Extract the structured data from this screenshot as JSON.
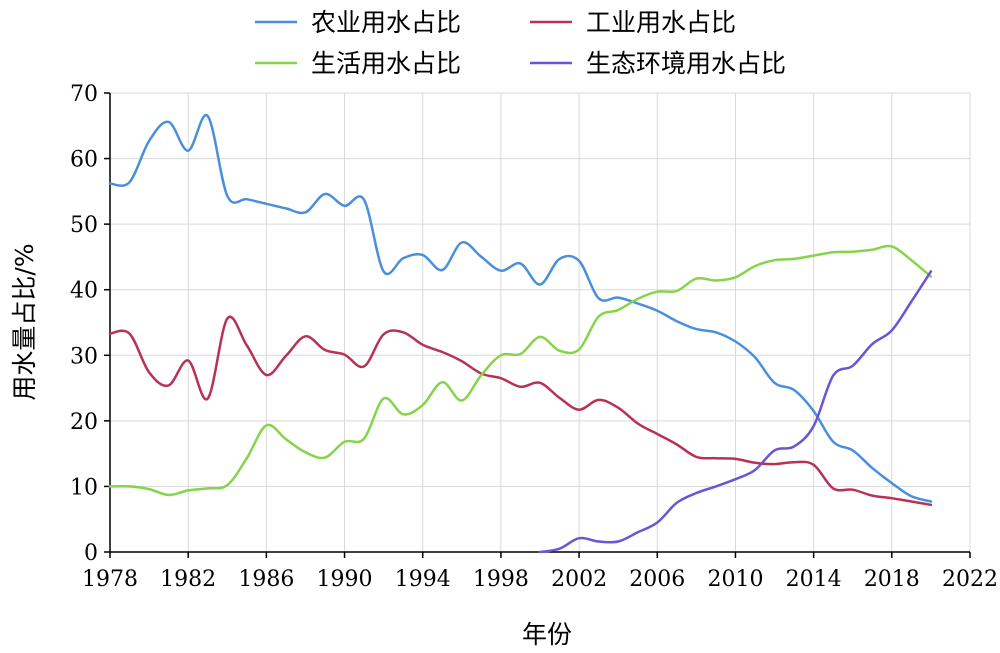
{
  "chart_data": {
    "type": "line",
    "xlabel": "年份",
    "ylabel": "用水量占比/%",
    "xlim": [
      1978,
      2022
    ],
    "ylim": [
      0,
      70
    ],
    "xticks": [
      1978,
      1982,
      1986,
      1990,
      1994,
      1998,
      2002,
      2006,
      2010,
      2014,
      2018,
      2022
    ],
    "yticks": [
      0,
      10,
      20,
      30,
      40,
      50,
      60,
      70
    ],
    "grid": true,
    "legend_position": "top-center",
    "series": [
      {
        "name": "农业用水占比",
        "color": "#4a8fdc",
        "x": [
          1978,
          1979,
          1980,
          1981,
          1982,
          1983,
          1984,
          1985,
          1986,
          1987,
          1988,
          1989,
          1990,
          1991,
          1992,
          1993,
          1994,
          1995,
          1996,
          1997,
          1998,
          1999,
          2000,
          2001,
          2002,
          2003,
          2004,
          2005,
          2006,
          2007,
          2008,
          2009,
          2010,
          2011,
          2012,
          2013,
          2014,
          2015,
          2016,
          2017,
          2018,
          2019,
          2020
        ],
        "y": [
          56.2,
          56.4,
          62.7,
          65.6,
          61.2,
          66.5,
          54.3,
          53.8,
          53.1,
          52.4,
          51.8,
          54.6,
          52.8,
          53.7,
          42.8,
          44.8,
          45.3,
          43.0,
          47.2,
          45.0,
          42.9,
          44.0,
          40.8,
          44.7,
          44.4,
          38.7,
          38.8,
          37.9,
          36.8,
          35.2,
          34.0,
          33.5,
          32.1,
          29.7,
          25.8,
          24.7,
          21.5,
          16.8,
          15.5,
          12.8,
          10.5,
          8.5,
          7.7
        ]
      },
      {
        "name": "工业用水占比",
        "color": "#b83256",
        "x": [
          1978,
          1979,
          1980,
          1981,
          1982,
          1983,
          1984,
          1985,
          1986,
          1987,
          1988,
          1989,
          1990,
          1991,
          1992,
          1993,
          1994,
          1995,
          1996,
          1997,
          1998,
          1999,
          2000,
          2001,
          2002,
          2003,
          2004,
          2005,
          2006,
          2007,
          2008,
          2009,
          2010,
          2011,
          2012,
          2013,
          2014,
          2015,
          2016,
          2017,
          2018,
          2019,
          2020
        ],
        "y": [
          33.3,
          33.3,
          27.4,
          25.4,
          29.2,
          23.4,
          35.6,
          31.5,
          27.0,
          29.9,
          32.9,
          30.8,
          30.1,
          28.3,
          33.2,
          33.5,
          31.6,
          30.5,
          29.1,
          27.2,
          26.5,
          25.2,
          25.8,
          23.5,
          21.7,
          23.2,
          22.0,
          19.6,
          18.0,
          16.4,
          14.5,
          14.3,
          14.2,
          13.6,
          13.4,
          13.7,
          13.3,
          9.7,
          9.5,
          8.6,
          8.2,
          7.7,
          7.2
        ]
      },
      {
        "name": "生活用水占比",
        "color": "#86d44a",
        "x": [
          1978,
          1979,
          1980,
          1981,
          1982,
          1983,
          1984,
          1985,
          1986,
          1987,
          1988,
          1989,
          1990,
          1991,
          1992,
          1993,
          1994,
          1995,
          1996,
          1997,
          1998,
          1999,
          2000,
          2001,
          2002,
          2003,
          2004,
          2005,
          2006,
          2007,
          2008,
          2009,
          2010,
          2011,
          2012,
          2013,
          2014,
          2015,
          2016,
          2017,
          2018,
          2019,
          2020
        ],
        "y": [
          10.0,
          10.0,
          9.6,
          8.7,
          9.4,
          9.7,
          10.2,
          14.3,
          19.3,
          17.2,
          15.2,
          14.4,
          16.8,
          17.3,
          23.4,
          21.0,
          22.4,
          25.9,
          23.1,
          27.0,
          30.0,
          30.2,
          32.8,
          30.7,
          30.9,
          35.9,
          36.9,
          38.6,
          39.7,
          39.8,
          41.7,
          41.4,
          41.9,
          43.6,
          44.5,
          44.7,
          45.2,
          45.7,
          45.8,
          46.1,
          46.6,
          44.5,
          42.0
        ]
      },
      {
        "name": "生态环境用水占比",
        "color": "#6c55d4",
        "x": [
          2000,
          2001,
          2002,
          2003,
          2004,
          2005,
          2006,
          2007,
          2008,
          2009,
          2010,
          2011,
          2012,
          2013,
          2014,
          2015,
          2016,
          2017,
          2018,
          2019,
          2020
        ],
        "y": [
          0.0,
          0.5,
          2.1,
          1.6,
          1.6,
          3.0,
          4.5,
          7.5,
          9.0,
          10.0,
          11.1,
          12.5,
          15.5,
          16.1,
          19.2,
          26.9,
          28.4,
          31.7,
          33.8,
          38.2,
          42.8
        ]
      }
    ]
  }
}
